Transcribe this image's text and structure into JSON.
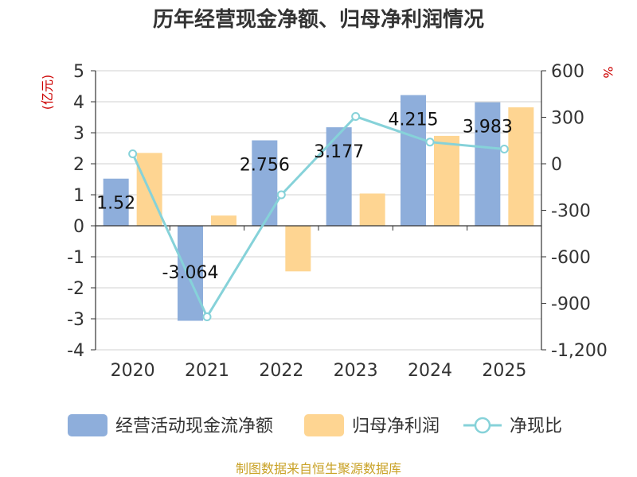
{
  "chart_data": {
    "type": "bar",
    "title": "历年经营现金净额、归母净利润情况",
    "categories": [
      "2020",
      "2021",
      "2022",
      "2023",
      "2024",
      "2025"
    ],
    "y_left": {
      "unit_label": "(亿元)",
      "ylim": [
        -4,
        5
      ],
      "ticks": [
        "5",
        "4",
        "3",
        "2",
        "1",
        "0",
        "-1",
        "-2",
        "-3",
        "-4"
      ]
    },
    "y_right": {
      "unit_label": "%",
      "ylim": [
        -1200,
        600
      ],
      "ticks": [
        "600",
        "300",
        "0",
        "-300",
        "-600",
        "-900",
        "-1,200"
      ]
    },
    "series": [
      {
        "name": "经营活动现金流净额",
        "kind": "bar",
        "axis": "left",
        "color": "#8eaedb",
        "values": [
          1.52,
          -3.064,
          2.756,
          3.177,
          4.215,
          3.983
        ],
        "labels": [
          "1.52",
          "-3.064",
          "2.756",
          "3.177",
          "4.215",
          "3.983"
        ]
      },
      {
        "name": "归母净利润",
        "kind": "bar",
        "axis": "left",
        "color": "#fed592",
        "values": [
          2.35,
          0.33,
          -1.47,
          1.04,
          2.9,
          3.82
        ]
      },
      {
        "name": "净现比",
        "kind": "line",
        "axis": "right",
        "color": "#86d2d9",
        "values": [
          64,
          -987,
          -200,
          305,
          140,
          95
        ]
      }
    ],
    "grid": true,
    "legend_position": "bottom"
  },
  "source": "制图数据来自恒生聚源数据库"
}
